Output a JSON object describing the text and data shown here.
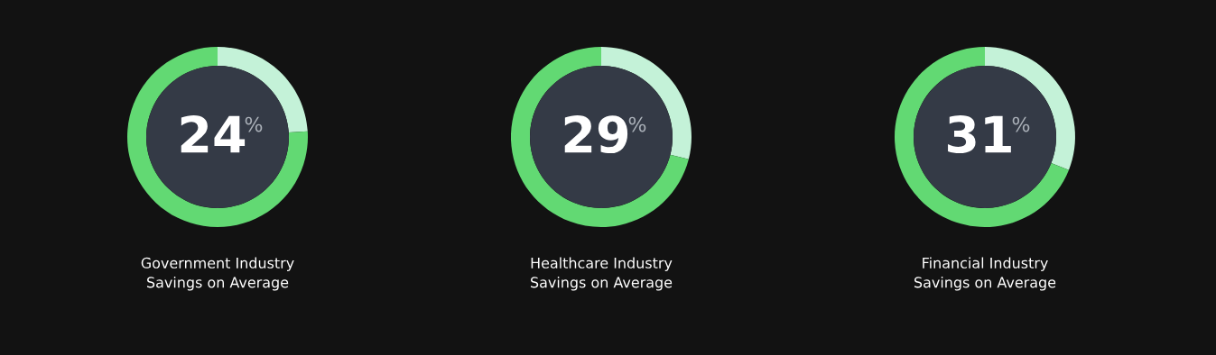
{
  "chart_data": [
    {
      "type": "donut",
      "title": "Government Industry\nSavings on Average",
      "categories": [
        null,
        null
      ],
      "values": [
        24,
        76
      ],
      "colors": [
        "#c4f2d8",
        "#62d973"
      ],
      "annotations": [
        "24",
        "%"
      ]
    },
    {
      "type": "donut",
      "title": "Healthcare Industry\nSavings on Average",
      "categories": [
        null,
        null
      ],
      "values": [
        29,
        71
      ],
      "colors": [
        "#c4f2d8",
        "#62d973"
      ],
      "annotations": [
        "29",
        "%"
      ]
    },
    {
      "type": "donut",
      "title": "Financial Industry\nSavings on Average",
      "categories": [
        null,
        null
      ],
      "values": [
        31,
        69
      ],
      "colors": [
        "#c4f2d8",
        "#62d973"
      ],
      "annotations": [
        "31",
        "%"
      ]
    }
  ]
}
